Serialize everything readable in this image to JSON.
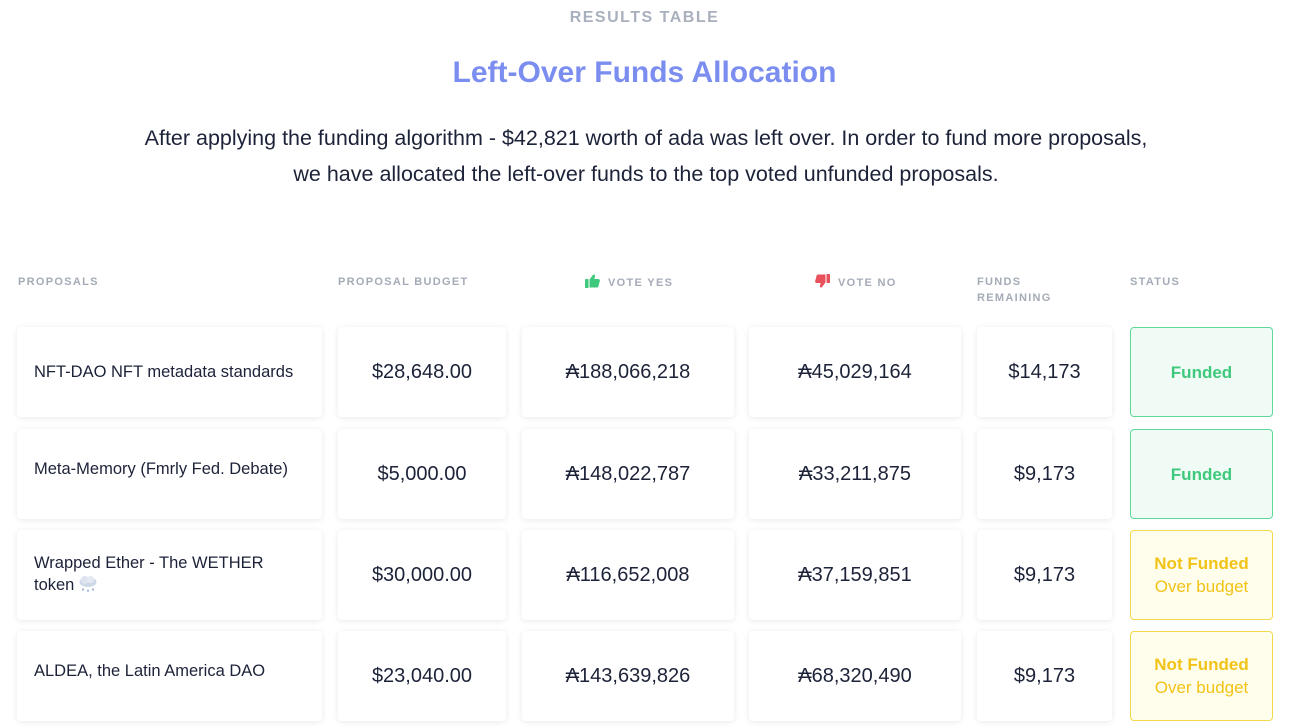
{
  "page": {
    "eyebrow": "RESULTS TABLE",
    "title": "Left-Over Funds Allocation",
    "description": "After applying the funding algorithm - $42,821 worth of ada was left over. In order to fund more proposals, we have allocated the left-over funds to the top voted unfunded proposals."
  },
  "table": {
    "headers": {
      "proposals": "PROPOSALS",
      "budget": "PROPOSAL BUDGET",
      "vote_yes": "VOTE YES",
      "vote_no": "VOTE NO",
      "funds_remaining_1": "FUNDS",
      "funds_remaining_2": "REMAINING",
      "status": "STATUS"
    },
    "header_icons": {
      "vote_yes": "thumbs-up-icon",
      "vote_no": "thumbs-down-icon"
    },
    "rows": [
      {
        "name": "NFT-DAO NFT metadata standards",
        "budget": "$28,648.00",
        "yes": "₳188,066,218",
        "no": "₳45,029,164",
        "remaining": "$14,173",
        "status": "Funded",
        "status_note": ""
      },
      {
        "name": "Meta-Memory (Fmrly Fed. Debate)",
        "budget": "$5,000.00",
        "yes": "₳148,022,787",
        "no": "₳33,211,875",
        "remaining": "$9,173",
        "status": "Funded",
        "status_note": ""
      },
      {
        "name": "Wrapped Ether - The WETHER token",
        "name_icon": "snow-cloud-icon",
        "budget": "$30,000.00",
        "yes": "₳116,652,008",
        "no": "₳37,159,851",
        "remaining": "$9,173",
        "status": "Not Funded",
        "status_note": "Over budget"
      },
      {
        "name": "ALDEA, the Latin America DAO",
        "budget": "$23,040.00",
        "yes": "₳143,639,826",
        "no": "₳68,320,490",
        "remaining": "$9,173",
        "status": "Not Funded",
        "status_note": "Over budget"
      }
    ]
  },
  "colors": {
    "title": "#7b8ef0",
    "eyebrow": "#a9b0bd",
    "text": "#1c2238",
    "funded_text": "#3ec97d",
    "funded_border": "#5fd99a",
    "funded_bg": "#effbf4",
    "notfunded_text": "#f2c317",
    "notfunded_border": "#f5d94d",
    "notfunded_bg": "#fffdec",
    "thumbs_up": "#3ec97d",
    "thumbs_down": "#e8505b"
  }
}
